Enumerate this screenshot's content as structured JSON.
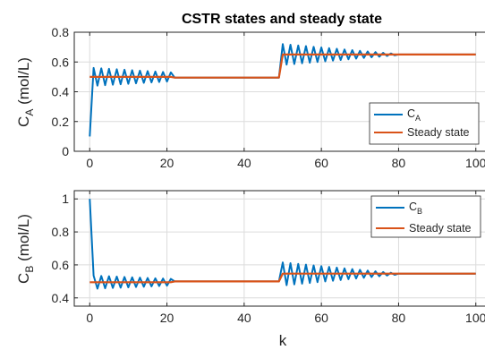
{
  "chart_data": [
    {
      "type": "line",
      "title": "CSTR states and steady state",
      "xlabel": "",
      "ylabel_main": "C",
      "ylabel_sub": "A",
      "ylabel_unit": " (mol/L)",
      "xlim": [
        -4,
        104
      ],
      "ylim": [
        0,
        0.8
      ],
      "xticks": [
        0,
        20,
        40,
        60,
        80,
        100
      ],
      "yticks": [
        0,
        0.2,
        0.4,
        0.6,
        0.8
      ],
      "ytick_labels": [
        "0",
        "0.2",
        "0.4",
        "0.6",
        "0.8"
      ],
      "grid": true,
      "legend_position": "bottom-right",
      "colors": {
        "state": "#0072BD",
        "steady": "#D95319"
      },
      "series": [
        {
          "name_main": "C",
          "name_sub": "A",
          "segments": [
            {
              "x0": 0,
              "x1": 0,
              "v0": 0.1,
              "v1": 0.1,
              "amp0": 0,
              "amp1": 0
            },
            {
              "x0": 1,
              "x1": 21,
              "v0": 0.5,
              "v1": 0.5,
              "amp0": 0.06,
              "amp1": 0.03
            },
            {
              "x0": 22,
              "x1": 49,
              "v0": 0.495,
              "v1": 0.495,
              "amp0": 0,
              "amp1": 0
            },
            {
              "x0": 50,
              "x1": 79,
              "v0": 0.65,
              "v1": 0.65,
              "amp0": 0.07,
              "amp1": 0.005
            },
            {
              "x0": 80,
              "x1": 100,
              "v0": 0.65,
              "v1": 0.65,
              "amp0": 0,
              "amp1": 0
            }
          ]
        },
        {
          "name": "Steady state",
          "x": [
            0,
            21,
            22,
            49,
            50,
            100
          ],
          "y": [
            0.5,
            0.5,
            0.495,
            0.495,
            0.65,
            0.65
          ]
        }
      ]
    },
    {
      "type": "line",
      "xlabel": "k",
      "ylabel_main": "C",
      "ylabel_sub": "B",
      "ylabel_unit": " (mol/L)",
      "xlim": [
        -4,
        104
      ],
      "ylim": [
        0.35,
        1.05
      ],
      "xticks": [
        0,
        20,
        40,
        60,
        80,
        100
      ],
      "yticks": [
        0.4,
        0.6,
        0.8,
        1
      ],
      "ytick_labels": [
        "0.4",
        "0.6",
        "0.8",
        "1"
      ],
      "grid": true,
      "legend_position": "top-right",
      "colors": {
        "state": "#0072BD",
        "steady": "#D95319"
      },
      "series": [
        {
          "name_main": "C",
          "name_sub": "B",
          "segments": [
            {
              "x0": 0,
              "x1": 0,
              "v0": 1.0,
              "v1": 1.0,
              "amp0": 0,
              "amp1": 0
            },
            {
              "x0": 1,
              "x1": 21,
              "v0": 0.495,
              "v1": 0.495,
              "amp0": 0.04,
              "amp1": 0.02
            },
            {
              "x0": 22,
              "x1": 49,
              "v0": 0.5,
              "v1": 0.5,
              "amp0": 0,
              "amp1": 0
            },
            {
              "x0": 50,
              "x1": 79,
              "v0": 0.545,
              "v1": 0.545,
              "amp0": 0.07,
              "amp1": 0.005
            },
            {
              "x0": 80,
              "x1": 100,
              "v0": 0.547,
              "v1": 0.547,
              "amp0": 0,
              "amp1": 0
            }
          ]
        },
        {
          "name": "Steady state",
          "x": [
            0,
            21,
            22,
            49,
            50,
            100
          ],
          "y": [
            0.495,
            0.495,
            0.5,
            0.5,
            0.547,
            0.547
          ]
        }
      ]
    }
  ]
}
